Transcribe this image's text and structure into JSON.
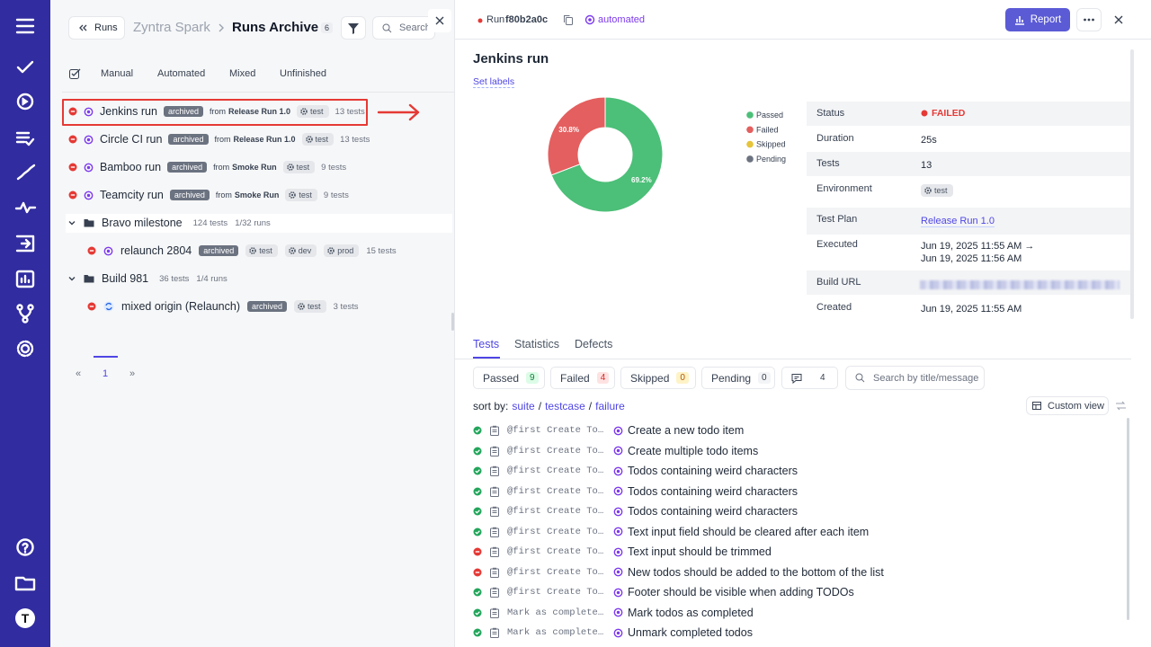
{
  "sidebar": {
    "logo": "T"
  },
  "left": {
    "back_button": "Runs",
    "project": "Zyntra Spark",
    "title": "Runs Archive",
    "count": 6,
    "search": "Search",
    "tabs": [
      "Manual",
      "Automated",
      "Mixed",
      "Unfinished"
    ],
    "runs": [
      {
        "name": "Jenkins run",
        "badge": "archived",
        "from": "from",
        "source": "Release Run 1.0",
        "tag": "test",
        "count": "13 tests"
      },
      {
        "name": "Circle CI run",
        "badge": "archived",
        "from": "from",
        "source": "Release Run 1.0",
        "tag": "test",
        "count": "13 tests"
      },
      {
        "name": "Bamboo run",
        "badge": "archived",
        "from": "from",
        "source": "Smoke Run",
        "tag": "test",
        "count": "9 tests"
      },
      {
        "name": "Teamcity run",
        "badge": "archived",
        "from": "from",
        "source": "Smoke Run",
        "tag": "test",
        "count": "9 tests"
      }
    ],
    "groups": [
      {
        "name": "Bravo milestone",
        "tests": "124 tests",
        "runs": "1/32 runs",
        "children": [
          {
            "name": "relaunch 2804",
            "badge": "archived",
            "tags": [
              "test",
              "dev",
              "prod"
            ],
            "count": "15 tests"
          }
        ]
      },
      {
        "name": "Build 981",
        "tests": "36 tests",
        "runs": "1/4 runs",
        "children": [
          {
            "name": "mixed origin (Relaunch)",
            "badge": "archived",
            "tags": [
              "test"
            ],
            "count": "3 tests"
          }
        ]
      }
    ],
    "pagination": {
      "prev": "«",
      "current": "1",
      "next": "»"
    }
  },
  "right": {
    "run_label": "Run",
    "run_id": "f80b2a0c",
    "mode": "automated",
    "report": "Report",
    "title": "Jenkins run",
    "set_labels": "Set labels",
    "details": [
      {
        "label": "Status",
        "value": "FAILED"
      },
      {
        "label": "Duration",
        "value": "25s"
      },
      {
        "label": "Tests",
        "value": "13"
      },
      {
        "label": "Environment",
        "value": "test"
      },
      {
        "label": "Test Plan",
        "value": "Release Run 1.0"
      },
      {
        "label": "Executed",
        "value": "Jun 19, 2025 11:55 AM →",
        "value2": "Jun 19, 2025 11:56 AM"
      },
      {
        "label": "Build URL"
      },
      {
        "label": "Created",
        "value": "Jun 19, 2025 11:55 AM"
      }
    ],
    "tabs": [
      "Tests",
      "Statistics",
      "Defects"
    ],
    "chips": [
      {
        "label": "Passed",
        "count": 9
      },
      {
        "label": "Failed",
        "count": 4
      },
      {
        "label": "Skipped",
        "count": 0
      },
      {
        "label": "Pending",
        "count": 0
      }
    ],
    "comments_count": 4,
    "search_placeholder": "Search by title/message",
    "sort": {
      "label": "sort by:",
      "options": [
        "suite",
        "testcase",
        "failure"
      ],
      "separator": "/"
    },
    "custom_view": "Custom view",
    "tests": [
      {
        "code": "@first Create To…",
        "title": "Create a new todo item"
      },
      {
        "code": "@first Create To…",
        "title": "Create multiple todo items"
      },
      {
        "code": "@first Create To…",
        "title": "Todos containing weird characters"
      },
      {
        "code": "@first Create To…",
        "title": "Todos containing weird characters"
      },
      {
        "code": "@first Create To…",
        "title": "Todos containing weird characters"
      },
      {
        "code": "@first Create To…",
        "title": "Text input field should be cleared after each item"
      },
      {
        "code": "@first Create To…",
        "title": "Text input should be trimmed"
      },
      {
        "code": "@first Create To…",
        "title": "New todos should be added to the bottom of the list"
      },
      {
        "code": "@first Create To…",
        "title": "Footer should be visible when adding TODOs"
      },
      {
        "code": "Mark as complete…",
        "title": "Mark todos as completed"
      },
      {
        "code": "Mark as complete…",
        "title": "Unmark completed todos"
      }
    ]
  },
  "chart_data": {
    "type": "pie",
    "categories": [
      "Passed",
      "Failed",
      "Skipped",
      "Pending"
    ],
    "values": [
      69.2,
      30.8,
      0,
      0
    ],
    "value_labels": [
      "69.2%",
      "30.8%",
      null,
      null
    ],
    "colors": [
      "#4cbf78",
      "#e45f5f",
      "#e6c43b",
      "#6b7280"
    ]
  }
}
